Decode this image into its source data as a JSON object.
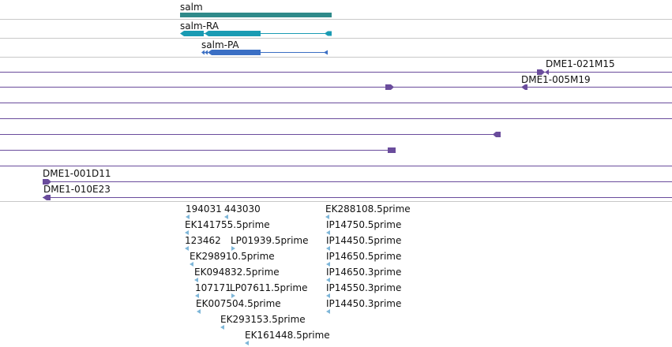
{
  "colors": {
    "separator": "#c8c8c8",
    "gene": "#2f8a8a",
    "transcript_ra": "#1a9bb3",
    "transcript_pa": "#3b6fc4",
    "clone": "#6a4c9c",
    "est": "#7eb6d8"
  },
  "genes": [
    {
      "label": "salm"
    },
    {
      "label": "salm-RA"
    },
    {
      "label": "salm-PA"
    }
  ],
  "clones": {
    "dme1_021m15": "DME1-021M15",
    "dme1_005m19": "DME1-005M19",
    "dme1_001d11": "DME1-001D11",
    "dme1_010e23": "DME1-010E23"
  },
  "ests": [
    {
      "label": "194031"
    },
    {
      "label": "443030"
    },
    {
      "label": "EK141755.5prime"
    },
    {
      "label": "123462"
    },
    {
      "label": "LP01939.5prime"
    },
    {
      "label": "EK298910.5prime"
    },
    {
      "label": "EK094832.5prime"
    },
    {
      "label": "107171"
    },
    {
      "label": "LP07611.5prime"
    },
    {
      "label": "EK007504.5prime"
    },
    {
      "label": "EK293153.5prime"
    },
    {
      "label": "EK161448.5prime"
    },
    {
      "label": "EK288108.5prime"
    },
    {
      "label": "IP14750.5prime"
    },
    {
      "label": "IP14450.5prime"
    },
    {
      "label": "IP14650.5prime"
    },
    {
      "label": "IP14650.3prime"
    },
    {
      "label": "IP14550.3prime"
    },
    {
      "label": "IP14450.3prime"
    }
  ]
}
